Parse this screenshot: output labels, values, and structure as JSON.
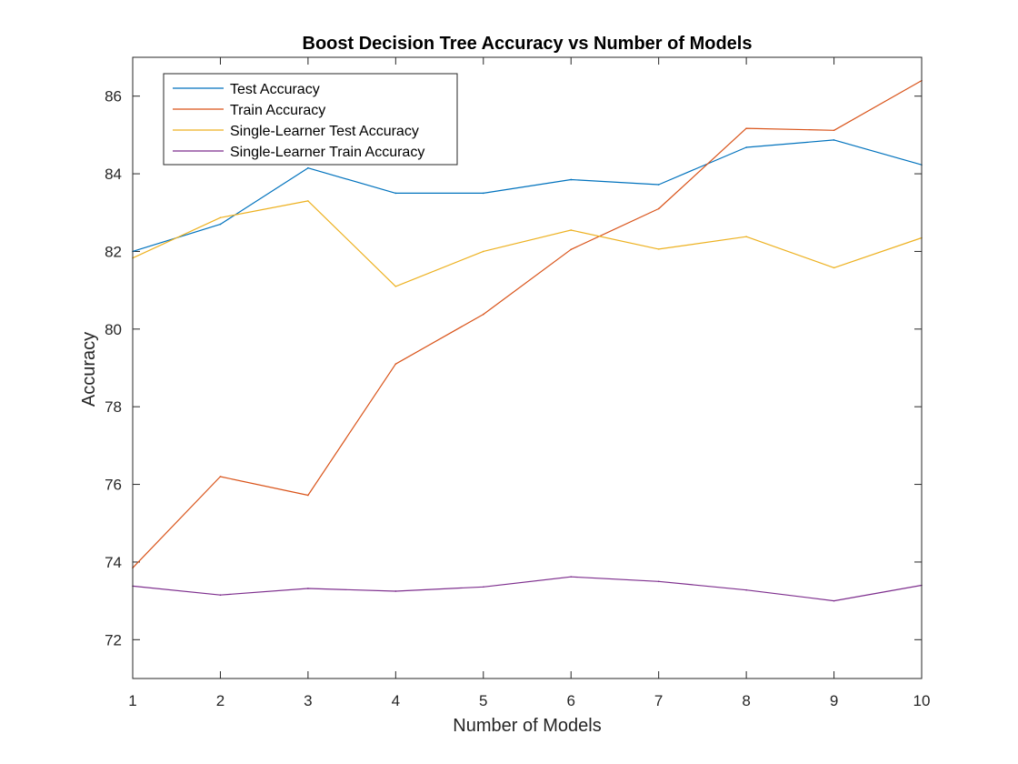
{
  "chart_data": {
    "type": "line",
    "title": "Boost Decision Tree Accuracy vs Number of Models",
    "xlabel": "Number of Models",
    "ylabel": "Accuracy",
    "x": [
      1,
      2,
      3,
      4,
      5,
      6,
      7,
      8,
      9,
      10
    ],
    "xlim": [
      1,
      10
    ],
    "ylim": [
      71,
      87
    ],
    "xticks": [
      1,
      2,
      3,
      4,
      5,
      6,
      7,
      8,
      9,
      10
    ],
    "yticks": [
      72,
      74,
      76,
      78,
      80,
      82,
      84,
      86
    ],
    "grid": false,
    "legend_position": "top-left",
    "series": [
      {
        "name": "Test Accuracy",
        "color": "#0072BD",
        "values": [
          82.0,
          82.7,
          84.15,
          83.5,
          83.5,
          83.85,
          83.72,
          84.68,
          84.87,
          84.23
        ]
      },
      {
        "name": "Train Accuracy",
        "color": "#D95319",
        "values": [
          73.85,
          76.2,
          75.72,
          79.1,
          80.38,
          82.05,
          83.1,
          85.17,
          85.12,
          86.4
        ]
      },
      {
        "name": "Single-Learner Test Accuracy",
        "color": "#EDB120",
        "values": [
          81.83,
          82.87,
          83.3,
          81.1,
          82.0,
          82.55,
          82.06,
          82.38,
          81.58,
          82.35
        ]
      },
      {
        "name": "Single-Learner Train Accuracy",
        "color": "#7E2F8E",
        "values": [
          73.38,
          73.15,
          73.32,
          73.25,
          73.36,
          73.62,
          73.5,
          73.28,
          73.0,
          73.4
        ]
      }
    ]
  }
}
